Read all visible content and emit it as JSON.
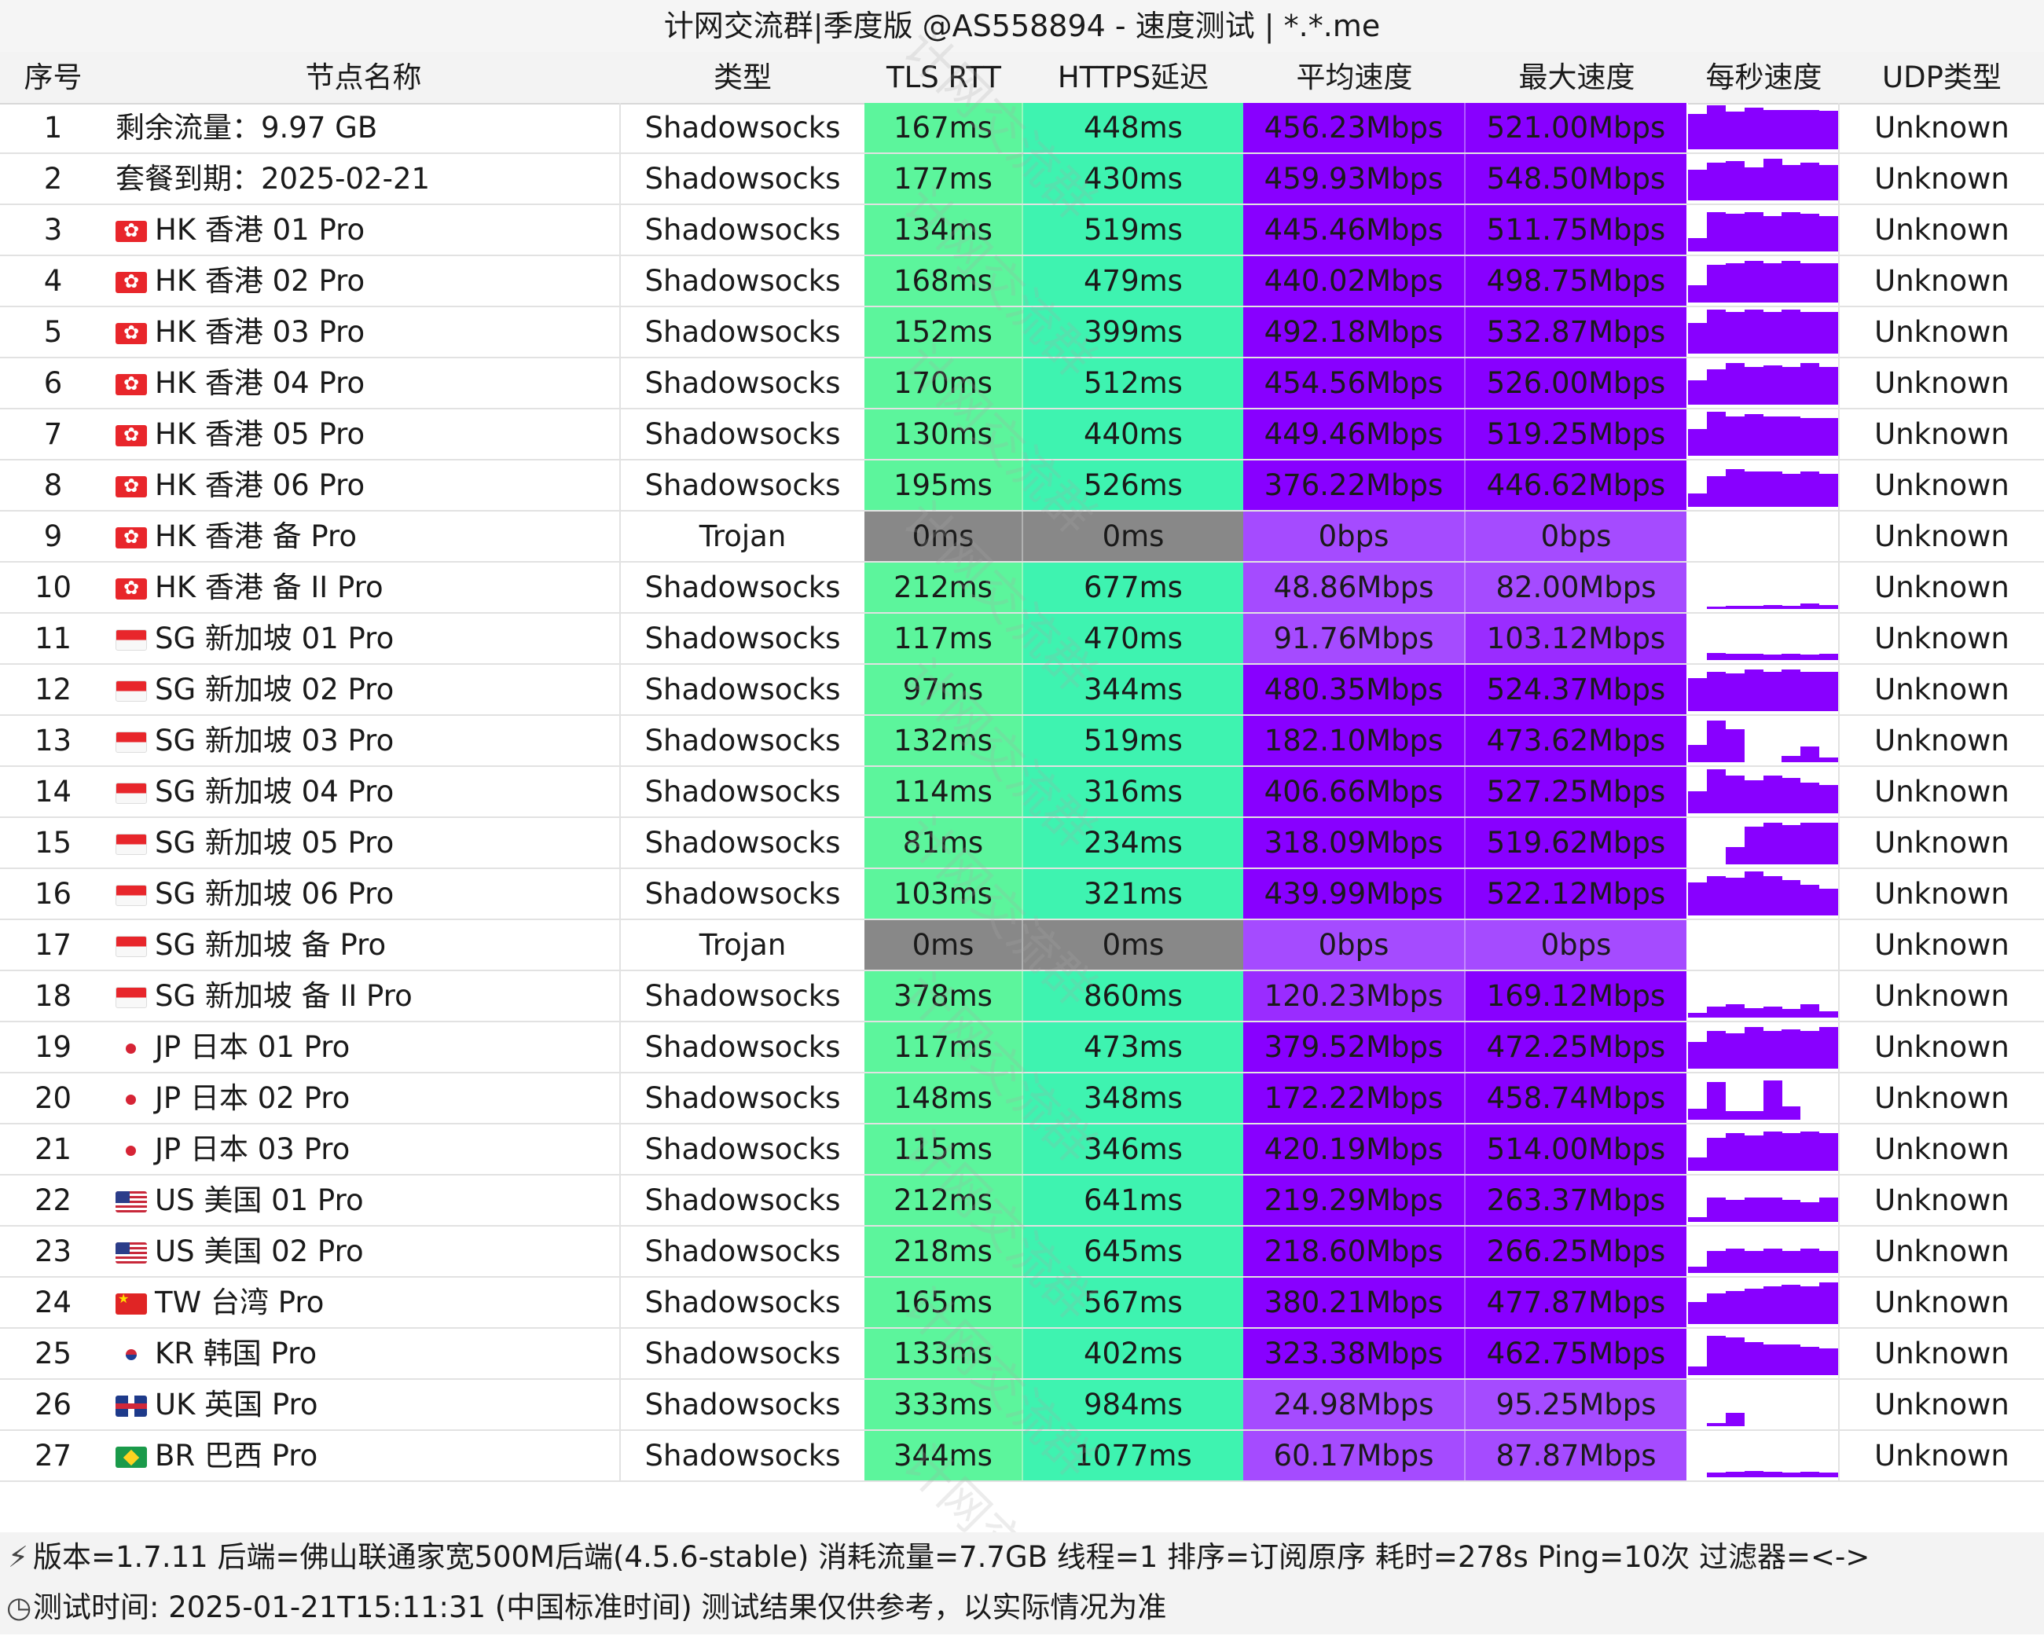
{
  "title": "计网交流群|季度版 @AS558894 - 速度测试 | *.*.me",
  "headers": {
    "idx": "序号",
    "name": "节点名称",
    "type": "类型",
    "tls": "TLS RTT",
    "https": "HTTPS延迟",
    "avg": "平均速度",
    "max": "最大速度",
    "spark": "每秒速度",
    "udp": "UDP类型"
  },
  "watermark": "计网交流群",
  "colors": {
    "latency_green": "#5cf59c",
    "latency_teal": "#3ef3b0",
    "latency_zero": "#888888",
    "speed_purple": "#8800ff",
    "speed_light_purple": "#a54bff",
    "spark_purple": "#8800ff"
  },
  "rows": [
    {
      "idx": "1",
      "flag": "",
      "name": "剩余流量：9.97 GB",
      "type": "Shadowsocks",
      "tls": "167ms",
      "https": "448ms",
      "avg": "456.23Mbps",
      "max": "521.00Mbps",
      "udp": "Unknown",
      "spark": [
        0.8,
        1.0,
        0.85,
        0.95,
        0.9,
        0.9,
        0.9,
        0.88
      ]
    },
    {
      "idx": "2",
      "flag": "",
      "name": "套餐到期：2025-02-21",
      "type": "Shadowsocks",
      "tls": "177ms",
      "https": "430ms",
      "avg": "459.93Mbps",
      "max": "548.50Mbps",
      "udp": "Unknown",
      "spark": [
        0.7,
        0.85,
        0.9,
        0.75,
        0.95,
        0.8,
        0.85,
        0.8
      ]
    },
    {
      "idx": "3",
      "flag": "hk",
      "name": "HK 香港 01 Pro",
      "type": "Shadowsocks",
      "tls": "134ms",
      "https": "519ms",
      "avg": "445.46Mbps",
      "max": "511.75Mbps",
      "udp": "Unknown",
      "spark": [
        0.3,
        0.9,
        0.85,
        0.9,
        0.8,
        0.9,
        0.85,
        0.8
      ]
    },
    {
      "idx": "4",
      "flag": "hk",
      "name": "HK 香港 02 Pro",
      "type": "Shadowsocks",
      "tls": "168ms",
      "https": "479ms",
      "avg": "440.02Mbps",
      "max": "498.75Mbps",
      "udp": "Unknown",
      "spark": [
        0.4,
        0.85,
        0.9,
        0.95,
        0.9,
        0.95,
        0.9,
        0.9
      ]
    },
    {
      "idx": "5",
      "flag": "hk",
      "name": "HK 香港 03 Pro",
      "type": "Shadowsocks",
      "tls": "152ms",
      "https": "399ms",
      "avg": "492.18Mbps",
      "max": "532.87Mbps",
      "udp": "Unknown",
      "spark": [
        0.7,
        1.0,
        0.95,
        1.0,
        0.95,
        1.0,
        0.95,
        0.95
      ]
    },
    {
      "idx": "6",
      "flag": "hk",
      "name": "HK 香港 04 Pro",
      "type": "Shadowsocks",
      "tls": "170ms",
      "https": "512ms",
      "avg": "454.56Mbps",
      "max": "526.00Mbps",
      "udp": "Unknown",
      "spark": [
        0.55,
        0.8,
        0.95,
        0.85,
        0.9,
        0.85,
        0.95,
        0.85
      ]
    },
    {
      "idx": "7",
      "flag": "hk",
      "name": "HK 香港 05 Pro",
      "type": "Shadowsocks",
      "tls": "130ms",
      "https": "440ms",
      "avg": "449.46Mbps",
      "max": "519.25Mbps",
      "udp": "Unknown",
      "spark": [
        0.6,
        1.0,
        0.9,
        0.95,
        0.9,
        0.9,
        0.85,
        0.85
      ]
    },
    {
      "idx": "8",
      "flag": "hk",
      "name": "HK 香港 06 Pro",
      "type": "Shadowsocks",
      "tls": "195ms",
      "https": "526ms",
      "avg": "376.22Mbps",
      "max": "446.62Mbps",
      "udp": "Unknown",
      "spark": [
        0.3,
        0.7,
        0.85,
        0.8,
        0.8,
        0.75,
        0.8,
        0.75
      ]
    },
    {
      "idx": "9",
      "flag": "hk",
      "name": "HK 香港 备 Pro",
      "type": "Trojan",
      "tls": "0ms",
      "https": "0ms",
      "avg": "0bps",
      "max": "0bps",
      "udp": "Unknown",
      "spark": []
    },
    {
      "idx": "10",
      "flag": "hk",
      "name": "HK 香港 备 II Pro",
      "type": "Shadowsocks",
      "tls": "212ms",
      "https": "677ms",
      "avg": "48.86Mbps",
      "max": "82.00Mbps",
      "udp": "Unknown",
      "spark": [
        0,
        0.06,
        0.08,
        0.07,
        0.09,
        0.08,
        0.12,
        0.09
      ]
    },
    {
      "idx": "11",
      "flag": "sg",
      "name": "SG 新加坡 01 Pro",
      "type": "Shadowsocks",
      "tls": "117ms",
      "https": "470ms",
      "avg": "91.76Mbps",
      "max": "103.12Mbps",
      "udp": "Unknown",
      "spark": [
        0,
        0.16,
        0.14,
        0.15,
        0.13,
        0.14,
        0.13,
        0.15
      ]
    },
    {
      "idx": "12",
      "flag": "sg",
      "name": "SG 新加坡 02 Pro",
      "type": "Shadowsocks",
      "tls": "97ms",
      "https": "344ms",
      "avg": "480.35Mbps",
      "max": "524.37Mbps",
      "udp": "Unknown",
      "spark": [
        0.75,
        0.9,
        0.85,
        0.95,
        0.9,
        0.95,
        0.9,
        0.9
      ]
    },
    {
      "idx": "13",
      "flag": "sg",
      "name": "SG 新加坡 03 Pro",
      "type": "Shadowsocks",
      "tls": "132ms",
      "https": "519ms",
      "avg": "182.10Mbps",
      "max": "473.62Mbps",
      "udp": "Unknown",
      "spark": [
        0.4,
        0.95,
        0.75,
        0,
        0,
        0.15,
        0.35,
        0.1
      ]
    },
    {
      "idx": "14",
      "flag": "sg",
      "name": "SG 新加坡 04 Pro",
      "type": "Shadowsocks",
      "tls": "114ms",
      "https": "316ms",
      "avg": "406.66Mbps",
      "max": "527.25Mbps",
      "udp": "Unknown",
      "spark": [
        0.5,
        1.0,
        0.85,
        0.75,
        0.85,
        0.8,
        0.7,
        0.65
      ]
    },
    {
      "idx": "15",
      "flag": "sg",
      "name": "SG 新加坡 05 Pro",
      "type": "Shadowsocks",
      "tls": "81ms",
      "https": "234ms",
      "avg": "318.09Mbps",
      "max": "519.62Mbps",
      "udp": "Unknown",
      "spark": [
        0,
        0,
        0.4,
        0.85,
        0.95,
        0.9,
        0.95,
        0.95
      ]
    },
    {
      "idx": "16",
      "flag": "sg",
      "name": "SG 新加坡 06 Pro",
      "type": "Shadowsocks",
      "tls": "103ms",
      "https": "321ms",
      "avg": "439.99Mbps",
      "max": "522.12Mbps",
      "udp": "Unknown",
      "spark": [
        0.75,
        0.9,
        0.85,
        1.0,
        0.9,
        0.8,
        0.7,
        0.6
      ]
    },
    {
      "idx": "17",
      "flag": "sg",
      "name": "SG 新加坡 备 Pro",
      "type": "Trojan",
      "tls": "0ms",
      "https": "0ms",
      "avg": "0bps",
      "max": "0bps",
      "udp": "Unknown",
      "spark": []
    },
    {
      "idx": "18",
      "flag": "sg",
      "name": "SG 新加坡 备 II Pro",
      "type": "Shadowsocks",
      "tls": "378ms",
      "https": "860ms",
      "avg": "120.23Mbps",
      "max": "169.12Mbps",
      "udp": "Unknown",
      "spark": [
        0.1,
        0.25,
        0.3,
        0.22,
        0.25,
        0.2,
        0.3,
        0.15
      ]
    },
    {
      "idx": "19",
      "flag": "jp",
      "name": "JP 日本 01 Pro",
      "type": "Shadowsocks",
      "tls": "117ms",
      "https": "473ms",
      "avg": "379.52Mbps",
      "max": "472.25Mbps",
      "udp": "Unknown",
      "spark": [
        0.6,
        0.85,
        0.8,
        0.95,
        0.85,
        0.9,
        0.85,
        0.95
      ]
    },
    {
      "idx": "20",
      "flag": "jp",
      "name": "JP 日本 02 Pro",
      "type": "Shadowsocks",
      "tls": "148ms",
      "https": "348ms",
      "avg": "172.22Mbps",
      "max": "458.74Mbps",
      "udp": "Unknown",
      "spark": [
        0.25,
        0.85,
        0.2,
        0.2,
        0.9,
        0.3,
        0.0,
        0.0
      ]
    },
    {
      "idx": "21",
      "flag": "jp",
      "name": "JP 日本 03 Pro",
      "type": "Shadowsocks",
      "tls": "115ms",
      "https": "346ms",
      "avg": "420.19Mbps",
      "max": "514.00Mbps",
      "udp": "Unknown",
      "spark": [
        0.3,
        0.75,
        0.85,
        0.8,
        0.9,
        0.85,
        0.9,
        0.85
      ]
    },
    {
      "idx": "22",
      "flag": "us",
      "name": "US 美国 01 Pro",
      "type": "Shadowsocks",
      "tls": "212ms",
      "https": "641ms",
      "avg": "219.29Mbps",
      "max": "263.37Mbps",
      "udp": "Unknown",
      "spark": [
        0.1,
        0.55,
        0.5,
        0.55,
        0.55,
        0.5,
        0.45,
        0.55
      ]
    },
    {
      "idx": "23",
      "flag": "us",
      "name": "US 美国 02 Pro",
      "type": "Shadowsocks",
      "tls": "218ms",
      "https": "645ms",
      "avg": "218.60Mbps",
      "max": "266.25Mbps",
      "udp": "Unknown",
      "spark": [
        0.15,
        0.5,
        0.55,
        0.5,
        0.55,
        0.5,
        0.55,
        0.5
      ]
    },
    {
      "idx": "24",
      "flag": "tw",
      "name": "TW 台湾 Pro",
      "type": "Shadowsocks",
      "tls": "165ms",
      "https": "567ms",
      "avg": "380.21Mbps",
      "max": "477.87Mbps",
      "udp": "Unknown",
      "spark": [
        0.5,
        0.7,
        0.75,
        0.8,
        0.85,
        0.9,
        0.85,
        0.95
      ]
    },
    {
      "idx": "25",
      "flag": "kr",
      "name": "KR 韩国 Pro",
      "type": "Shadowsocks",
      "tls": "133ms",
      "https": "402ms",
      "avg": "323.38Mbps",
      "max": "462.75Mbps",
      "udp": "Unknown",
      "spark": [
        0.2,
        0.9,
        0.85,
        0.75,
        0.7,
        0.7,
        0.65,
        0.6
      ]
    },
    {
      "idx": "26",
      "flag": "uk",
      "name": "UK 英国 Pro",
      "type": "Shadowsocks",
      "tls": "333ms",
      "https": "984ms",
      "avg": "24.98Mbps",
      "max": "95.25Mbps",
      "udp": "Unknown",
      "spark": [
        0,
        0.08,
        0.3,
        0,
        0,
        0,
        0,
        0
      ]
    },
    {
      "idx": "27",
      "flag": "br",
      "name": "BR 巴西 Pro",
      "type": "Shadowsocks",
      "tls": "344ms",
      "https": "1077ms",
      "avg": "60.17Mbps",
      "max": "87.87Mbps",
      "udp": "Unknown",
      "spark": [
        0,
        0.1,
        0.12,
        0.14,
        0.12,
        0.1,
        0.12,
        0.1
      ]
    }
  ],
  "footer": {
    "line1": "版本=1.7.11  后端=佛山联通家宽500M后端(4.5.6-stable) 消耗流量=7.7GB  线程=1  排序=订阅原序  耗时=278s  Ping=10次  过滤器=<->",
    "line2": "测试时间: 2025-01-21T15:11:31 (中国标准时间)  测试结果仅供参考，以实际情况为准",
    "icon1": "antenna-icon",
    "icon2": "clock-icon"
  }
}
